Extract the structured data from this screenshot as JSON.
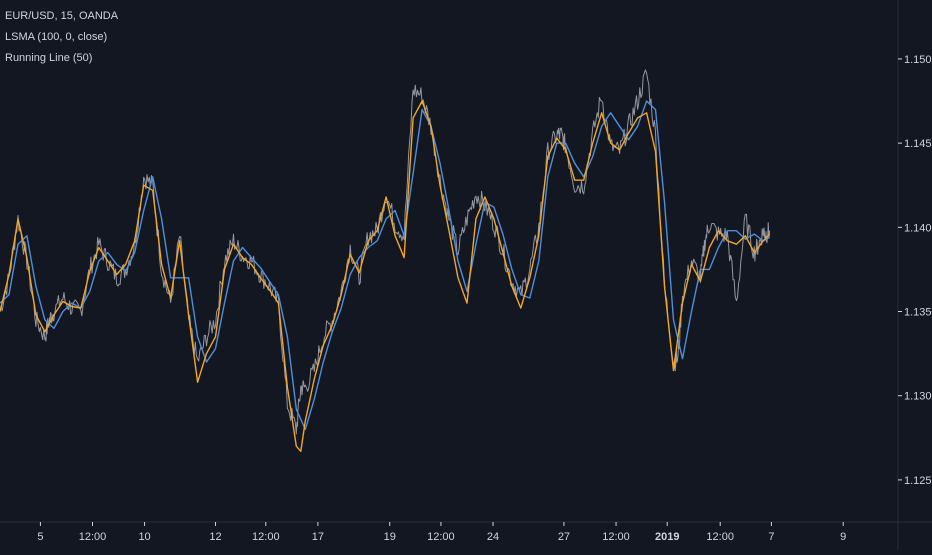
{
  "legend": {
    "symbol": "EUR/USD, 15, OANDA",
    "indicator_1": "LSMA (100, 0, close)",
    "indicator_2": "Running Line (50)"
  },
  "colors": {
    "background": "#131722",
    "price": "#9598a1",
    "lsma": "#f5a623",
    "running_line": "#4d8fdc",
    "axis_text": "#d1d4dc",
    "axis_line": "#2a2e39"
  },
  "chart_data": {
    "type": "line",
    "title": "EUR/USD, 15, OANDA",
    "xlabel": "",
    "ylabel": "",
    "ylim": [
      1.1225,
      1.1535
    ],
    "x_domain": [
      0,
      100
    ],
    "grid": false,
    "legend_placement": "top-left",
    "x_ticks": [
      {
        "x": 4.5,
        "label": "5"
      },
      {
        "x": 10.3,
        "label": "12:00"
      },
      {
        "x": 16.1,
        "label": "10"
      },
      {
        "x": 24.0,
        "label": "12"
      },
      {
        "x": 29.6,
        "label": "12:00"
      },
      {
        "x": 35.4,
        "label": "17"
      },
      {
        "x": 43.4,
        "label": "19"
      },
      {
        "x": 49.1,
        "label": "12:00"
      },
      {
        "x": 54.9,
        "label": "24"
      },
      {
        "x": 62.8,
        "label": "27"
      },
      {
        "x": 68.6,
        "label": "12:00"
      },
      {
        "x": 74.3,
        "label": "2019",
        "bold": true
      },
      {
        "x": 80.2,
        "label": "12:00"
      },
      {
        "x": 85.9,
        "label": "7"
      },
      {
        "x": 93.9,
        "label": "9"
      }
    ],
    "y_ticks": [
      {
        "y": 1.125,
        "label": "1.12500"
      },
      {
        "y": 1.13,
        "label": "1.13000"
      },
      {
        "y": 1.135,
        "label": "1.13500"
      },
      {
        "y": 1.14,
        "label": "1.14000"
      },
      {
        "y": 1.145,
        "label": "1.14500"
      },
      {
        "y": 1.15,
        "label": "1.15000"
      }
    ],
    "series": [
      {
        "key": "price",
        "x": [
          0,
          1,
          2,
          3,
          4,
          5,
          5.5,
          6,
          7,
          8,
          9,
          10,
          11,
          12,
          13,
          14,
          15,
          16,
          17,
          18,
          19,
          20,
          21,
          22,
          23,
          24,
          25,
          26,
          27,
          28,
          29,
          30,
          31,
          32,
          33,
          33.5,
          34,
          35,
          36,
          37,
          38,
          39,
          40,
          41,
          42,
          43,
          44,
          45,
          46,
          47,
          48,
          49,
          50,
          51,
          52,
          53,
          54,
          55,
          56,
          57,
          58,
          59,
          60,
          61,
          62,
          62.5,
          63,
          64,
          65,
          66,
          67,
          68,
          69,
          70,
          71,
          72,
          73,
          74,
          75,
          75.5,
          76,
          77,
          78,
          78.5,
          79,
          80,
          81,
          82,
          83,
          84,
          84.5,
          85,
          85.3,
          85.7
        ],
        "values": [
          1.135,
          1.137,
          1.1405,
          1.138,
          1.1345,
          1.1335,
          1.1345,
          1.135,
          1.1358,
          1.1352,
          1.135,
          1.1375,
          1.139,
          1.138,
          1.137,
          1.1375,
          1.139,
          1.143,
          1.1425,
          1.1375,
          1.1355,
          1.1395,
          1.1345,
          1.132,
          1.1335,
          1.1345,
          1.138,
          1.1392,
          1.1383,
          1.138,
          1.1372,
          1.1365,
          1.1355,
          1.1295,
          1.128,
          1.1305,
          1.1305,
          1.1315,
          1.1335,
          1.1345,
          1.1362,
          1.1388,
          1.137,
          1.1395,
          1.1398,
          1.142,
          1.1402,
          1.1395,
          1.1482,
          1.1478,
          1.146,
          1.1428,
          1.1405,
          1.1386,
          1.1405,
          1.142,
          1.1413,
          1.1402,
          1.1386,
          1.1368,
          1.136,
          1.1375,
          1.14,
          1.1445,
          1.1455,
          1.1455,
          1.1448,
          1.1425,
          1.1425,
          1.1455,
          1.1478,
          1.1448,
          1.1445,
          1.146,
          1.1475,
          1.1492,
          1.1455,
          1.1365,
          1.132,
          1.1322,
          1.136,
          1.138,
          1.137,
          1.1392,
          1.1402,
          1.1396,
          1.1395,
          1.1355,
          1.1405,
          1.1385,
          1.139,
          1.1398,
          1.1396,
          1.1398
        ]
      },
      {
        "key": "lsma",
        "x": [
          0,
          1,
          2,
          3,
          4,
          5,
          6,
          7,
          8,
          9,
          10,
          11,
          12,
          13,
          14,
          15,
          16,
          17,
          18,
          19,
          20,
          21,
          22,
          23,
          24,
          25,
          26,
          27,
          28,
          29,
          30,
          31,
          32,
          33,
          33.5,
          34,
          35,
          36,
          37,
          38,
          39,
          40,
          41,
          42,
          43,
          44,
          45,
          46,
          47,
          48,
          49,
          50,
          51,
          52,
          53,
          54,
          55,
          56,
          57,
          58,
          59,
          60,
          61,
          62,
          63,
          64,
          65,
          66,
          67,
          68,
          69,
          70,
          71,
          72,
          73,
          74,
          75,
          76,
          77,
          78,
          79,
          80,
          81,
          82,
          83,
          84,
          85,
          85.7
        ],
        "values": [
          1.135,
          1.1372,
          1.1405,
          1.1382,
          1.1348,
          1.1338,
          1.1348,
          1.1356,
          1.1353,
          1.1352,
          1.1374,
          1.1388,
          1.138,
          1.1372,
          1.1378,
          1.1392,
          1.1425,
          1.1422,
          1.1378,
          1.1358,
          1.1392,
          1.1348,
          1.1308,
          1.1325,
          1.1335,
          1.1375,
          1.139,
          1.1382,
          1.1378,
          1.137,
          1.1363,
          1.1355,
          1.1305,
          1.127,
          1.1267,
          1.1285,
          1.131,
          1.133,
          1.1342,
          1.136,
          1.1384,
          1.1373,
          1.1392,
          1.1398,
          1.1418,
          1.1395,
          1.1382,
          1.1465,
          1.1475,
          1.146,
          1.1425,
          1.1398,
          1.137,
          1.1355,
          1.1405,
          1.1418,
          1.1405,
          1.1385,
          1.1365,
          1.1352,
          1.137,
          1.1395,
          1.1442,
          1.1453,
          1.1446,
          1.1428,
          1.1428,
          1.145,
          1.1468,
          1.145,
          1.1446,
          1.1456,
          1.1465,
          1.1468,
          1.1445,
          1.1365,
          1.1315,
          1.1355,
          1.1378,
          1.1368,
          1.1388,
          1.1398,
          1.1392,
          1.139,
          1.1395,
          1.1385,
          1.1392,
          1.1396
        ]
      },
      {
        "key": "running_line",
        "x": [
          0,
          1,
          2,
          3,
          4,
          5,
          6,
          7,
          8,
          9,
          10,
          11,
          12,
          13,
          14,
          15,
          16,
          17,
          18,
          19,
          20,
          21,
          22,
          23,
          24,
          25,
          26,
          27,
          28,
          29,
          30,
          31,
          32,
          33,
          34,
          35,
          36,
          37,
          38,
          39,
          40,
          41,
          42,
          43,
          44,
          45,
          46,
          47,
          48,
          49,
          50,
          51,
          52,
          53,
          54,
          55,
          56,
          57,
          58,
          59,
          60,
          61,
          62,
          63,
          64,
          65,
          66,
          67,
          68,
          69,
          70,
          71,
          72,
          73,
          74,
          75,
          76,
          77,
          78,
          79,
          80,
          81,
          82,
          83,
          84,
          85,
          85.7
        ],
        "values": [
          1.1355,
          1.136,
          1.139,
          1.1395,
          1.1365,
          1.1345,
          1.134,
          1.135,
          1.1355,
          1.1352,
          1.1362,
          1.138,
          1.1385,
          1.1378,
          1.1374,
          1.1385,
          1.141,
          1.143,
          1.1405,
          1.137,
          1.137,
          1.137,
          1.1335,
          1.132,
          1.1328,
          1.1355,
          1.138,
          1.1388,
          1.1382,
          1.1376,
          1.1368,
          1.136,
          1.1335,
          1.1292,
          1.128,
          1.1298,
          1.132,
          1.1338,
          1.1352,
          1.1372,
          1.1382,
          1.1388,
          1.1392,
          1.1405,
          1.141,
          1.1395,
          1.1432,
          1.147,
          1.146,
          1.1438,
          1.141,
          1.138,
          1.1362,
          1.139,
          1.1415,
          1.1412,
          1.1396,
          1.1375,
          1.136,
          1.1358,
          1.138,
          1.143,
          1.145,
          1.145,
          1.1438,
          1.143,
          1.1442,
          1.146,
          1.1468,
          1.146,
          1.1452,
          1.146,
          1.1475,
          1.147,
          1.1415,
          1.1345,
          1.1322,
          1.135,
          1.1375,
          1.1375,
          1.1388,
          1.1398,
          1.1398,
          1.1393,
          1.1396,
          1.1392,
          1.1394
        ]
      }
    ]
  }
}
